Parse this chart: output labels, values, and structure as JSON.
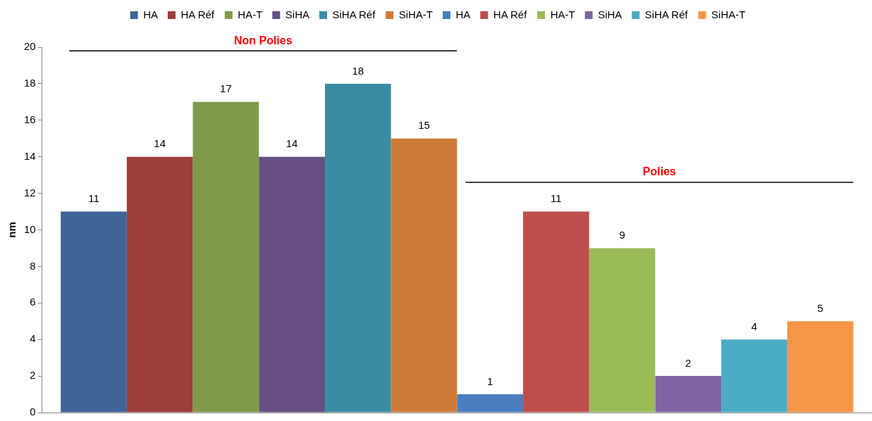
{
  "chart_data": {
    "type": "bar",
    "ylabel": "nm",
    "categories": [
      null
    ],
    "series": [
      {
        "name": "HA",
        "color": "#3f6498",
        "values": [
          11
        ]
      },
      {
        "name": "HA Réf",
        "color": "#9c3e3b",
        "values": [
          14
        ]
      },
      {
        "name": "HA-T",
        "color": "#7f9a48",
        "values": [
          17
        ]
      },
      {
        "name": "SiHA",
        "color": "#664e82",
        "values": [
          14
        ]
      },
      {
        "name": "SiHA Réf",
        "color": "#3b8ca2",
        "values": [
          18
        ]
      },
      {
        "name": "SiHA-T",
        "color": "#cd7a37",
        "values": [
          15
        ]
      },
      {
        "name": "HA",
        "color": "#4a7ebf",
        "values": [
          1
        ]
      },
      {
        "name": "HA Réf",
        "color": "#bf4f4d",
        "values": [
          11
        ]
      },
      {
        "name": "HA-T",
        "color": "#9bbb59",
        "values": [
          9
        ]
      },
      {
        "name": "SiHA",
        "color": "#8064a2",
        "values": [
          2
        ]
      },
      {
        "name": "SiHA Réf",
        "color": "#4bacc6",
        "values": [
          4
        ]
      },
      {
        "name": "SiHA-T",
        "color": "#f79646",
        "values": [
          5
        ]
      }
    ],
    "ref_lines": [
      {
        "axis": "y",
        "value": 19.8,
        "label": "Non Polies",
        "color": "#000000"
      },
      {
        "axis": "y",
        "value": 12.6,
        "label": "Polies",
        "color": "#000000"
      }
    ],
    "ylim": [
      0,
      20
    ],
    "yticks": [
      0,
      2,
      4,
      6,
      8,
      10,
      12,
      14,
      16,
      18,
      20
    ],
    "grid": false,
    "legend": "top",
    "tick_labels": "y",
    "data_labels": true
  }
}
